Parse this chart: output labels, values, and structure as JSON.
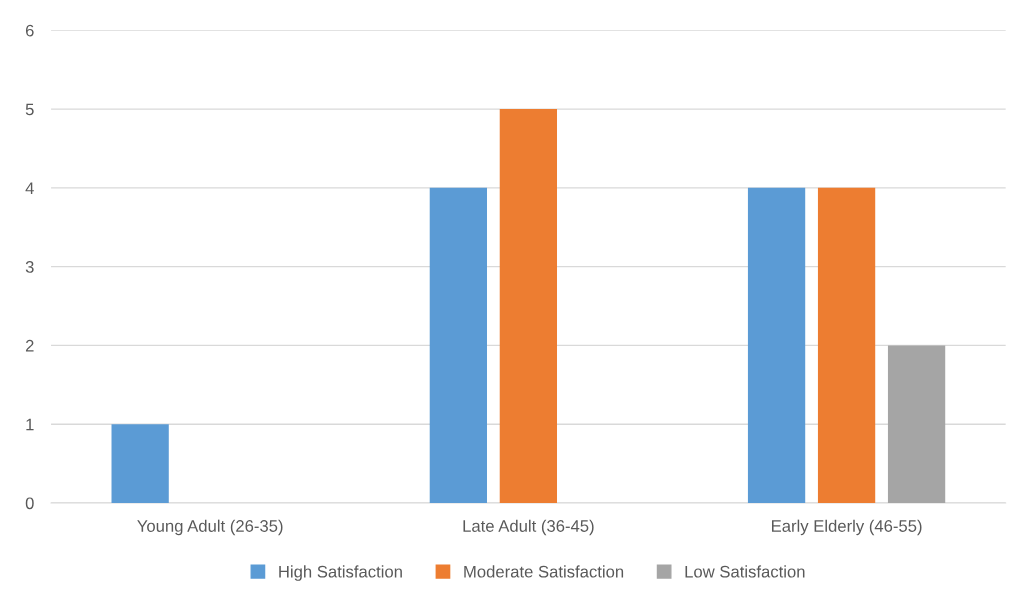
{
  "chart_data": {
    "type": "bar",
    "categories": [
      "Young Adult (26-35)",
      "Late Adult (36-45)",
      "Early Elderly (46-55)"
    ],
    "series": [
      {
        "name": "High Satisfaction",
        "color": "#5b9bd5",
        "values": [
          1,
          4,
          4
        ]
      },
      {
        "name": "Moderate Satisfaction",
        "color": "#ed7d31",
        "values": [
          null,
          5,
          4
        ]
      },
      {
        "name": "Low Satisfaction",
        "color": "#a5a5a5",
        "values": [
          null,
          null,
          2
        ]
      }
    ],
    "ylim": [
      0,
      6
    ],
    "yticks": [
      0,
      1,
      2,
      3,
      4,
      5,
      6
    ],
    "grid": "y",
    "legend": "bottom"
  }
}
